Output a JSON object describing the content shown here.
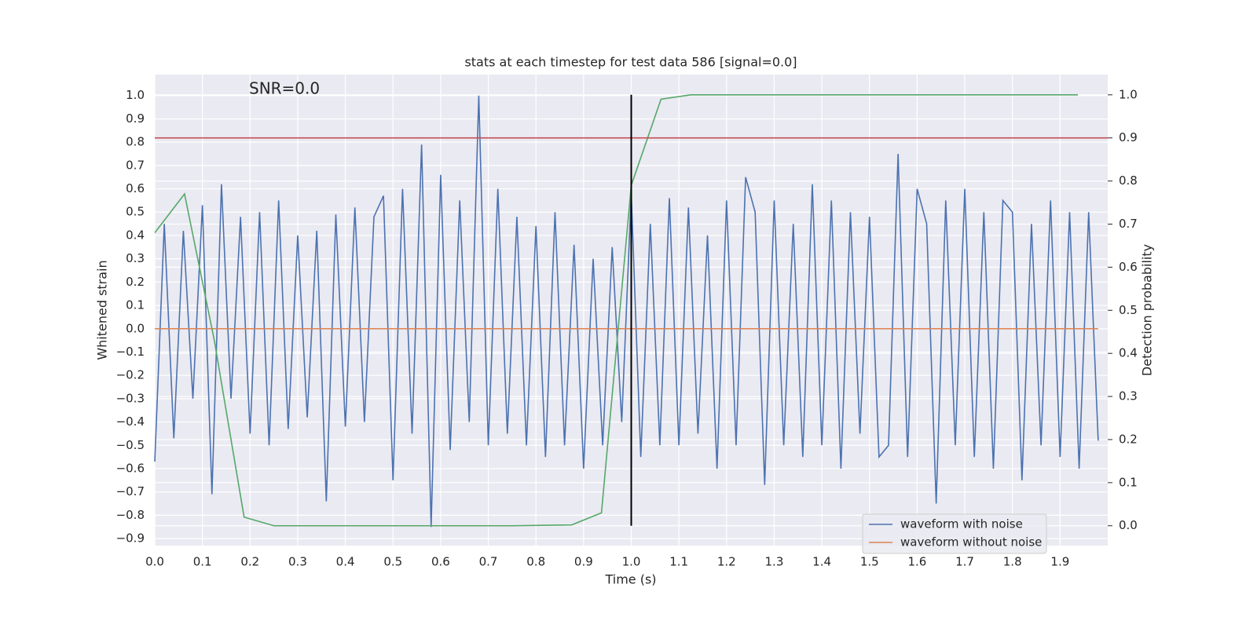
{
  "chart_data": {
    "type": "line",
    "title": "stats at each timestep for test data 586 [signal=0.0]",
    "annotation": "SNR=0.0",
    "xlabel": "Time (s)",
    "ylabel": "Whitened strain",
    "y2label": "Detection probability",
    "xlim": [
      0,
      2.0
    ],
    "ylim": [
      -0.93,
      1.09
    ],
    "y2lim": [
      -0.046,
      1.047
    ],
    "xticks": [
      {
        "value": 0,
        "label": "0.0"
      },
      0.1,
      0.2,
      0.3,
      0.4,
      0.5,
      0.6,
      0.7,
      0.8,
      0.9,
      {
        "value": 1,
        "label": "1.0"
      },
      1.1,
      1.2,
      1.3,
      1.4,
      1.5,
      1.6,
      1.7,
      1.8,
      1.9
    ],
    "yticks": [
      {
        "value": -0.9,
        "label": "−0.9"
      },
      {
        "value": -0.8,
        "label": "−0.8"
      },
      {
        "value": -0.7,
        "label": "−0.7"
      },
      {
        "value": -0.6,
        "label": "−0.6"
      },
      {
        "value": -0.5,
        "label": "−0.5"
      },
      {
        "value": -0.4,
        "label": "−0.4"
      },
      {
        "value": -0.3,
        "label": "−0.3"
      },
      {
        "value": -0.2,
        "label": "−0.2"
      },
      {
        "value": -0.1,
        "label": "−0.1"
      },
      {
        "value": 0,
        "label": "0.0"
      },
      0.1,
      0.2,
      0.3,
      0.4,
      0.5,
      0.6,
      0.7,
      0.8,
      0.9,
      {
        "value": 1,
        "label": "1.0"
      }
    ],
    "y2ticks": [
      {
        "value": 0,
        "label": "0.0"
      },
      0.1,
      0.2,
      0.3,
      0.4,
      0.5,
      0.6,
      0.7,
      0.8,
      0.9,
      {
        "value": 1,
        "label": "1.0"
      }
    ],
    "grid": true,
    "legend": "lower right",
    "series": [
      {
        "name": "waveform with noise",
        "color": "#4c72b0",
        "x": [
          0,
          0.02,
          0.04,
          0.06,
          0.08,
          0.1,
          0.12,
          0.14,
          0.16,
          0.18,
          0.2,
          0.22,
          0.24,
          0.26,
          0.28,
          0.3,
          0.32,
          0.34,
          0.36,
          0.38,
          0.4,
          0.42,
          0.44,
          0.46,
          0.48,
          0.5,
          0.52,
          0.54,
          0.56,
          0.58,
          0.6,
          0.62,
          0.64,
          0.66,
          0.68,
          0.7,
          0.72,
          0.74,
          0.76,
          0.78,
          0.8,
          0.82,
          0.84,
          0.86,
          0.88,
          0.9,
          0.92,
          0.94,
          0.96,
          0.98,
          1.0,
          1.02,
          1.04,
          1.06,
          1.08,
          1.1,
          1.12,
          1.14,
          1.16,
          1.18,
          1.2,
          1.22,
          1.24,
          1.26,
          1.28,
          1.3,
          1.32,
          1.34,
          1.36,
          1.38,
          1.4,
          1.42,
          1.44,
          1.46,
          1.48,
          1.5,
          1.52,
          1.54,
          1.56,
          1.58,
          1.6,
          1.62,
          1.64,
          1.66,
          1.68,
          1.7,
          1.72,
          1.74,
          1.76,
          1.78,
          1.8,
          1.82,
          1.84,
          1.86,
          1.88,
          1.9,
          1.92,
          1.94,
          1.96,
          1.98
        ],
        "values": [
          -0.57,
          0.45,
          -0.47,
          0.42,
          -0.3,
          0.53,
          -0.71,
          0.62,
          -0.3,
          0.48,
          -0.45,
          0.5,
          -0.5,
          0.55,
          -0.43,
          0.4,
          -0.38,
          0.42,
          -0.74,
          0.49,
          -0.42,
          0.52,
          -0.4,
          0.48,
          0.57,
          -0.65,
          0.6,
          -0.45,
          0.79,
          -0.85,
          0.66,
          -0.52,
          0.55,
          -0.4,
          1.0,
          -0.5,
          0.6,
          -0.45,
          0.48,
          -0.5,
          0.44,
          -0.55,
          0.5,
          -0.5,
          0.36,
          -0.6,
          0.3,
          -0.5,
          0.35,
          -0.4,
          0.58,
          -0.55,
          0.45,
          -0.5,
          0.56,
          -0.5,
          0.52,
          -0.45,
          0.4,
          -0.6,
          0.55,
          -0.5,
          0.65,
          0.5,
          -0.67,
          0.55,
          -0.5,
          0.45,
          -0.55,
          0.62,
          -0.5,
          0.55,
          -0.6,
          0.5,
          -0.45,
          0.48,
          -0.55,
          -0.5,
          0.75,
          -0.55,
          0.6,
          0.45,
          -0.75,
          0.55,
          -0.5,
          0.6,
          -0.55,
          0.5,
          -0.6,
          0.55,
          0.5,
          -0.65,
          0.45,
          -0.5,
          0.55,
          -0.55,
          0.5,
          -0.6,
          0.5,
          -0.48
        ]
      },
      {
        "name": "waveform without noise",
        "color": "#dd8452",
        "x": [
          0,
          1.98
        ],
        "values": [
          0,
          0
        ]
      },
      {
        "color": "#55a868",
        "axis": "y2",
        "x": [
          0,
          0.0625,
          0.125,
          0.1875,
          0.25,
          0.3125,
          0.375,
          0.4375,
          0.5,
          0.5625,
          0.625,
          0.6875,
          0.75,
          0.8125,
          0.875,
          0.9375,
          1.0,
          1.0625,
          1.125,
          1.1875,
          1.25,
          1.3125,
          1.375,
          1.4375,
          1.5,
          1.5625,
          1.625,
          1.6875,
          1.75,
          1.8125,
          1.875,
          1.9375
        ],
        "values": [
          0.68,
          0.77,
          0.43,
          0.02,
          0,
          0,
          0,
          0,
          0,
          0,
          0,
          0,
          0,
          0.001,
          0.002,
          0.03,
          0.79,
          0.99,
          1.0,
          1.0,
          1.0,
          1.0,
          1.0,
          1.0,
          1.0,
          1.0,
          1.0,
          1.0,
          1.0,
          1.0,
          1.0,
          1.0
        ]
      }
    ],
    "hlines": [
      {
        "value": 0.9,
        "axis": "y2",
        "color": "#c44e52"
      }
    ],
    "vlines": [
      {
        "value": 1.0,
        "axis": "y2",
        "ymin": 0,
        "ymax": 1,
        "color": "#000000"
      }
    ]
  }
}
